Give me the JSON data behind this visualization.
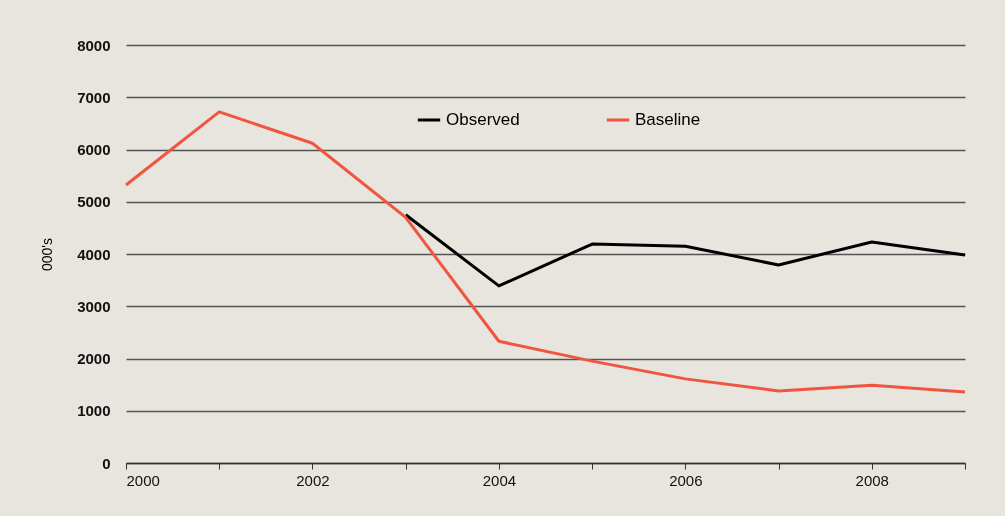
{
  "chart_data": {
    "type": "line",
    "ylabel": "000's",
    "x": [
      2000,
      2001,
      2002,
      2003,
      2004,
      2005,
      2006,
      2007,
      2008,
      2009
    ],
    "series": [
      {
        "name": "Observed",
        "color": "#000000",
        "values": [
          null,
          null,
          null,
          4750,
          3390,
          4190,
          4150,
          3790,
          4230,
          3980
        ]
      },
      {
        "name": "Baseline",
        "color": "#f0553f",
        "values": [
          5320,
          6720,
          6120,
          4700,
          2330,
          1950,
          1610,
          1380,
          1490,
          1360
        ]
      }
    ],
    "xlim": [
      2000,
      2009
    ],
    "xticks": [
      2000,
      {
        "value": 2001,
        "label": null
      },
      2002,
      {
        "value": 2003,
        "label": null
      },
      2004,
      {
        "value": 2005,
        "label": null
      },
      2006,
      {
        "value": 2007,
        "label": null
      },
      2008,
      {
        "value": 2009,
        "label": null
      }
    ],
    "ylim": [
      0,
      8000
    ],
    "yticks": [
      0,
      1000,
      2000,
      3000,
      4000,
      5000,
      6000,
      7000,
      8000
    ],
    "grid": "y",
    "legend": "top",
    "marker": "none",
    "line_style": "solid"
  }
}
